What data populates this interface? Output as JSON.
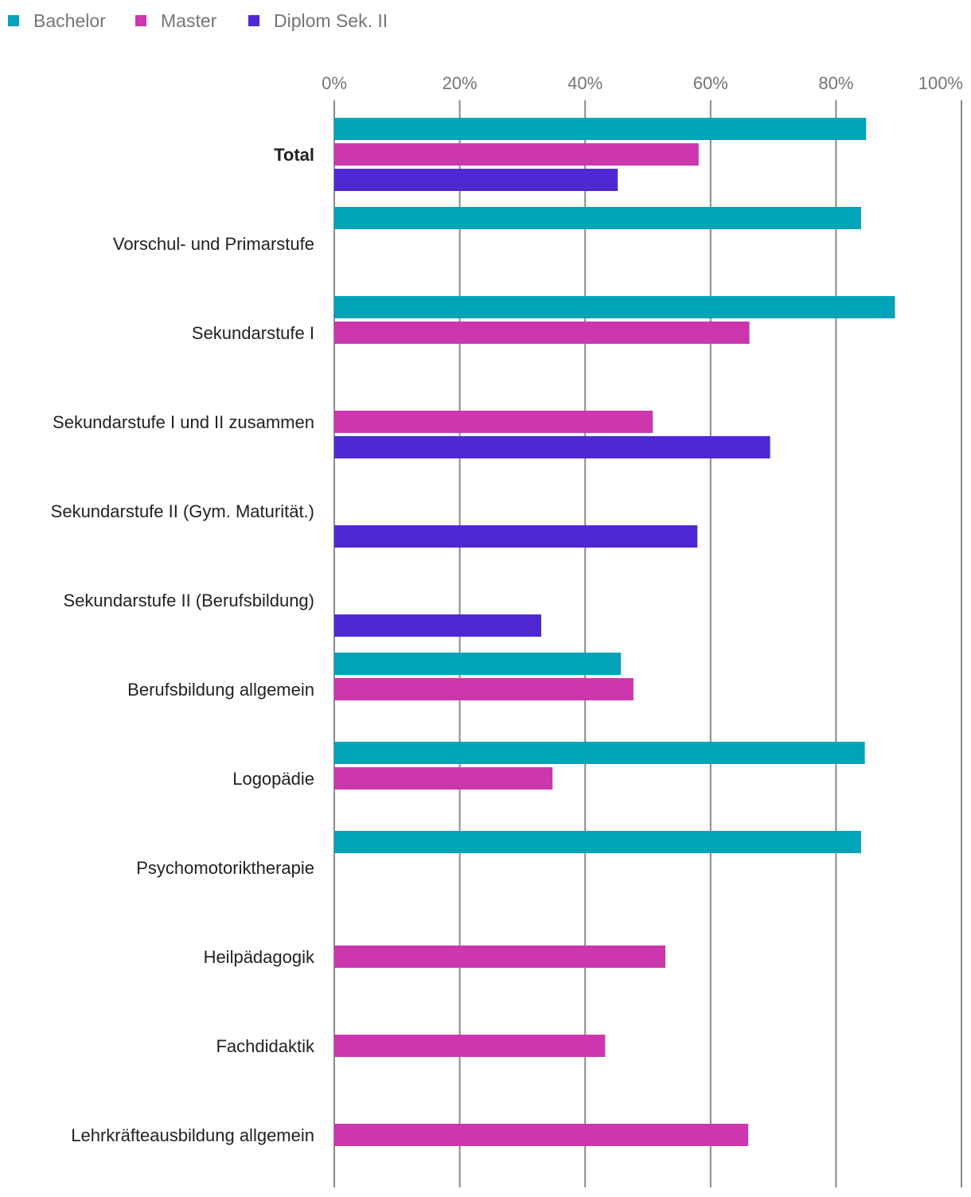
{
  "chart_data": {
    "type": "bar",
    "orientation": "horizontal",
    "title": "",
    "xlabel": "",
    "ylabel": "",
    "xlim": [
      0,
      100
    ],
    "x_ticks": [
      "0%",
      "20%",
      "40%",
      "60%",
      "80%",
      "100%"
    ],
    "legend_position": "top-left",
    "categories": [
      "Total",
      "Vorschul- und Primarstufe",
      "Sekundarstufe I",
      "Sekundarstufe I und II zusammen",
      "Sekundarstufe II (Gym. Maturität.)",
      "Sekundarstufe II (Berufsbildung)",
      "Berufsbildung allgemein",
      "Logopädie",
      "Psychomotoriktherapie",
      "Heilpädagogik",
      "Fachdidaktik",
      "Lehrkräfteausbildung allgemein"
    ],
    "bold_categories": [
      "Total"
    ],
    "series": [
      {
        "name": "Bachelor",
        "color": "#00a3b8",
        "values": [
          84.8,
          84.0,
          89.4,
          null,
          null,
          null,
          45.7,
          84.6,
          84.0,
          null,
          null,
          null
        ]
      },
      {
        "name": "Master",
        "color": "#cc37ad",
        "values": [
          58.1,
          null,
          66.2,
          50.8,
          null,
          null,
          47.7,
          34.8,
          null,
          52.8,
          43.2,
          66.0
        ]
      },
      {
        "name": "Diplom Sek. II",
        "color": "#4f28d3",
        "values": [
          45.2,
          null,
          null,
          69.5,
          57.9,
          33.0,
          null,
          null,
          null,
          null,
          null,
          null
        ]
      }
    ]
  }
}
